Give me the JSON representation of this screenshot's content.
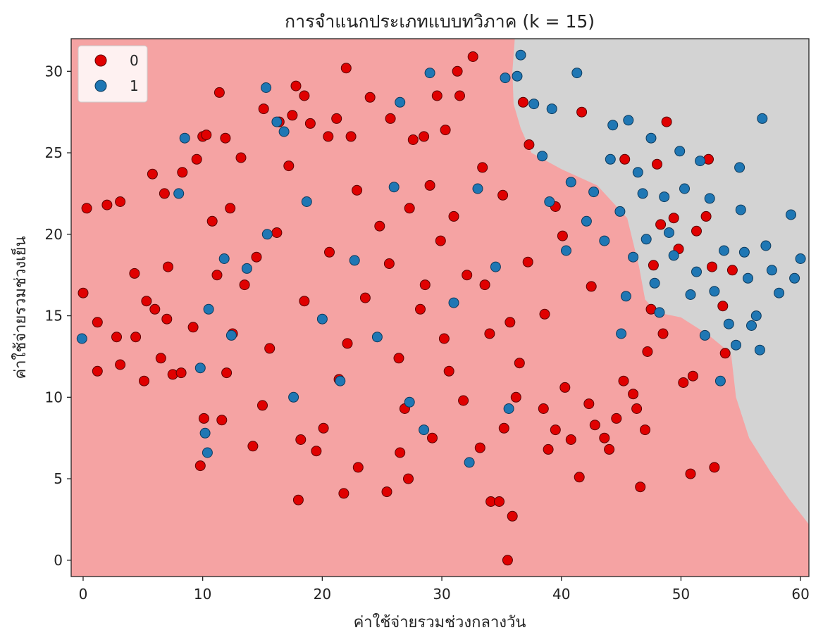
{
  "chart_data": {
    "type": "scatter",
    "title": "การจำแนกประเภทแบบทวิภาค (k = 15)",
    "xlabel": "ค่าใช้จ่ายรวมช่วงกลางวัน",
    "ylabel": "ค่าใช้จ่ายรวมช่วงเย็น",
    "xlim": [
      -1,
      60.7
    ],
    "ylim": [
      -1,
      32
    ],
    "x_ticks": [
      0,
      10,
      20,
      30,
      40,
      50,
      60
    ],
    "y_ticks": [
      0,
      5,
      10,
      15,
      20,
      25,
      30
    ],
    "grid": false,
    "legend": {
      "placement": "top-left",
      "entries": [
        {
          "label": "0",
          "color": "#e00000"
        },
        {
          "label": "1",
          "color": "#1f77b4"
        }
      ]
    },
    "region_colors": {
      "0": "#f5a3a3",
      "1": "#d3d3d3"
    },
    "decision_boundary": [
      [
        36.1,
        32
      ],
      [
        35.9,
        30
      ],
      [
        36.0,
        28
      ],
      [
        36.6,
        26.5
      ],
      [
        37.5,
        25
      ],
      [
        40,
        24
      ],
      [
        43,
        23
      ],
      [
        45.5,
        21
      ],
      [
        46.5,
        18
      ],
      [
        47,
        16
      ],
      [
        48,
        15.2
      ],
      [
        50,
        14.9
      ],
      [
        51.5,
        14.2
      ],
      [
        52.5,
        13.7
      ],
      [
        53.5,
        13.1
      ],
      [
        54.2,
        12.6
      ],
      [
        54.6,
        10
      ],
      [
        55.7,
        7.5
      ],
      [
        57.5,
        5.4
      ],
      [
        59,
        3.8
      ],
      [
        60.7,
        2.2
      ]
    ],
    "series": [
      {
        "name": "0",
        "color": "#e00000",
        "points": [
          [
            0.0,
            16.4
          ],
          [
            0.3,
            21.6
          ],
          [
            1.2,
            14.6
          ],
          [
            1.2,
            11.6
          ],
          [
            2.0,
            21.8
          ],
          [
            2.8,
            13.7
          ],
          [
            3.1,
            12.0
          ],
          [
            3.1,
            22.0
          ],
          [
            4.4,
            13.7
          ],
          [
            4.3,
            17.6
          ],
          [
            5.1,
            11.0
          ],
          [
            5.3,
            15.9
          ],
          [
            5.8,
            23.7
          ],
          [
            6.0,
            15.4
          ],
          [
            6.5,
            12.4
          ],
          [
            6.8,
            22.5
          ],
          [
            7.0,
            14.8
          ],
          [
            7.1,
            18.0
          ],
          [
            7.5,
            11.4
          ],
          [
            8.2,
            11.5
          ],
          [
            8.3,
            23.8
          ],
          [
            9.2,
            14.3
          ],
          [
            9.5,
            24.6
          ],
          [
            9.8,
            5.8
          ],
          [
            10.0,
            26.0
          ],
          [
            10.3,
            26.1
          ],
          [
            10.1,
            8.7
          ],
          [
            10.8,
            20.8
          ],
          [
            11.2,
            17.5
          ],
          [
            11.4,
            28.7
          ],
          [
            11.6,
            8.6
          ],
          [
            11.9,
            25.9
          ],
          [
            12.3,
            21.6
          ],
          [
            12.0,
            11.5
          ],
          [
            12.5,
            13.9
          ],
          [
            13.2,
            24.7
          ],
          [
            13.5,
            16.9
          ],
          [
            14.2,
            7.0
          ],
          [
            14.5,
            18.6
          ],
          [
            15.0,
            9.5
          ],
          [
            15.1,
            27.7
          ],
          [
            15.6,
            13.0
          ],
          [
            16.4,
            26.9
          ],
          [
            17.2,
            24.2
          ],
          [
            17.5,
            27.3
          ],
          [
            17.8,
            29.1
          ],
          [
            18.0,
            3.7
          ],
          [
            18.2,
            7.4
          ],
          [
            18.5,
            28.5
          ],
          [
            19.0,
            26.8
          ],
          [
            19.5,
            6.7
          ],
          [
            20.1,
            8.1
          ],
          [
            20.5,
            26.0
          ],
          [
            21.2,
            27.1
          ],
          [
            21.8,
            4.1
          ],
          [
            22.0,
            30.2
          ],
          [
            22.4,
            26.0
          ],
          [
            23.0,
            5.7
          ],
          [
            24.0,
            28.4
          ],
          [
            25.4,
            4.2
          ],
          [
            25.7,
            27.1
          ],
          [
            26.5,
            6.6
          ],
          [
            27.2,
            5.0
          ],
          [
            27.6,
            25.8
          ],
          [
            28.5,
            26.0
          ],
          [
            29.2,
            7.5
          ],
          [
            29.6,
            28.5
          ],
          [
            30.3,
            26.4
          ],
          [
            31.3,
            30.0
          ],
          [
            31.5,
            28.5
          ],
          [
            32.6,
            30.9
          ],
          [
            33.2,
            6.9
          ],
          [
            34.1,
            3.6
          ],
          [
            34.8,
            3.6
          ],
          [
            35.2,
            8.1
          ],
          [
            35.5,
            0.0
          ],
          [
            35.9,
            2.7
          ],
          [
            36.2,
            10.0
          ],
          [
            36.8,
            28.1
          ],
          [
            37.3,
            25.5
          ],
          [
            38.5,
            9.3
          ],
          [
            38.9,
            6.8
          ],
          [
            39.5,
            8.0
          ],
          [
            40.3,
            10.6
          ],
          [
            40.8,
            7.4
          ],
          [
            41.5,
            5.1
          ],
          [
            41.7,
            27.5
          ],
          [
            42.3,
            9.6
          ],
          [
            42.8,
            8.3
          ],
          [
            43.6,
            7.5
          ],
          [
            44.0,
            6.8
          ],
          [
            44.6,
            8.7
          ],
          [
            45.2,
            11.0
          ],
          [
            45.3,
            24.6
          ],
          [
            46.0,
            10.2
          ],
          [
            46.3,
            9.3
          ],
          [
            46.6,
            4.5
          ],
          [
            47.0,
            8.0
          ],
          [
            47.2,
            12.8
          ],
          [
            47.5,
            15.4
          ],
          [
            47.7,
            18.1
          ],
          [
            48.0,
            24.3
          ],
          [
            48.3,
            20.6
          ],
          [
            48.5,
            13.9
          ],
          [
            48.8,
            26.9
          ],
          [
            49.4,
            21.0
          ],
          [
            49.8,
            19.1
          ],
          [
            50.2,
            10.9
          ],
          [
            50.8,
            5.3
          ],
          [
            51.0,
            11.3
          ],
          [
            51.3,
            20.2
          ],
          [
            52.1,
            21.1
          ],
          [
            52.3,
            24.6
          ],
          [
            52.6,
            18.0
          ],
          [
            52.8,
            5.7
          ],
          [
            53.5,
            15.6
          ],
          [
            53.7,
            12.7
          ],
          [
            54.3,
            17.8
          ],
          [
            22.1,
            13.3
          ],
          [
            25.6,
            18.2
          ],
          [
            28.2,
            15.4
          ],
          [
            31.0,
            21.1
          ],
          [
            33.6,
            16.9
          ],
          [
            26.4,
            12.4
          ],
          [
            29.9,
            19.6
          ],
          [
            35.1,
            22.4
          ],
          [
            23.6,
            16.1
          ],
          [
            37.2,
            18.3
          ],
          [
            30.6,
            11.6
          ],
          [
            27.3,
            21.6
          ],
          [
            34.0,
            13.9
          ],
          [
            32.1,
            17.5
          ],
          [
            24.8,
            20.5
          ],
          [
            38.6,
            15.1
          ],
          [
            20.6,
            18.9
          ],
          [
            36.5,
            12.1
          ],
          [
            29.0,
            23.0
          ],
          [
            22.9,
            22.7
          ],
          [
            31.8,
            9.8
          ],
          [
            40.1,
            19.9
          ],
          [
            18.5,
            15.9
          ],
          [
            33.4,
            24.1
          ],
          [
            26.9,
            9.3
          ],
          [
            42.5,
            16.8
          ],
          [
            16.2,
            20.1
          ],
          [
            35.7,
            14.6
          ],
          [
            28.6,
            16.9
          ],
          [
            21.4,
            11.1
          ],
          [
            39.5,
            21.7
          ],
          [
            30.2,
            13.6
          ]
        ]
      },
      {
        "name": "1",
        "color": "#1f77b4",
        "points": [
          [
            -0.1,
            13.6
          ],
          [
            8.0,
            22.5
          ],
          [
            8.5,
            25.9
          ],
          [
            9.8,
            11.8
          ],
          [
            10.2,
            7.8
          ],
          [
            10.4,
            6.6
          ],
          [
            10.5,
            15.4
          ],
          [
            11.8,
            18.5
          ],
          [
            12.4,
            13.8
          ],
          [
            13.7,
            17.9
          ],
          [
            15.3,
            29.0
          ],
          [
            15.4,
            20.0
          ],
          [
            16.2,
            26.9
          ],
          [
            16.8,
            26.3
          ],
          [
            17.6,
            10.0
          ],
          [
            18.7,
            22.0
          ],
          [
            20.0,
            14.8
          ],
          [
            21.5,
            11.0
          ],
          [
            22.7,
            18.4
          ],
          [
            24.6,
            13.7
          ],
          [
            26.0,
            22.9
          ],
          [
            26.5,
            28.1
          ],
          [
            27.3,
            9.7
          ],
          [
            28.5,
            8.0
          ],
          [
            29.0,
            29.9
          ],
          [
            31.0,
            15.8
          ],
          [
            32.3,
            6.0
          ],
          [
            33.0,
            22.8
          ],
          [
            34.5,
            18.0
          ],
          [
            35.3,
            29.6
          ],
          [
            35.6,
            9.3
          ],
          [
            36.3,
            29.7
          ],
          [
            36.6,
            31.0
          ],
          [
            37.7,
            28.0
          ],
          [
            38.4,
            24.8
          ],
          [
            39.2,
            27.7
          ],
          [
            40.4,
            19.0
          ],
          [
            40.8,
            23.2
          ],
          [
            41.3,
            29.9
          ],
          [
            42.1,
            20.8
          ],
          [
            42.7,
            22.6
          ],
          [
            43.6,
            19.6
          ],
          [
            44.3,
            26.7
          ],
          [
            44.9,
            21.4
          ],
          [
            45.0,
            13.9
          ],
          [
            45.6,
            27.0
          ],
          [
            46.0,
            18.6
          ],
          [
            46.4,
            23.8
          ],
          [
            46.8,
            22.5
          ],
          [
            47.1,
            19.7
          ],
          [
            47.5,
            25.9
          ],
          [
            47.8,
            17.0
          ],
          [
            48.2,
            15.2
          ],
          [
            48.6,
            22.3
          ],
          [
            49.0,
            20.1
          ],
          [
            49.4,
            18.7
          ],
          [
            49.9,
            25.1
          ],
          [
            50.3,
            22.8
          ],
          [
            50.8,
            16.3
          ],
          [
            51.3,
            17.7
          ],
          [
            51.6,
            24.5
          ],
          [
            52.0,
            13.8
          ],
          [
            52.4,
            22.2
          ],
          [
            52.8,
            16.5
          ],
          [
            53.3,
            11.0
          ],
          [
            53.6,
            19.0
          ],
          [
            54.0,
            14.5
          ],
          [
            54.6,
            13.2
          ],
          [
            54.9,
            24.1
          ],
          [
            55.0,
            21.5
          ],
          [
            55.3,
            18.9
          ],
          [
            55.6,
            17.3
          ],
          [
            55.9,
            14.4
          ],
          [
            56.3,
            15.0
          ],
          [
            56.6,
            12.9
          ],
          [
            57.1,
            19.3
          ],
          [
            57.6,
            17.8
          ],
          [
            58.2,
            16.4
          ],
          [
            56.8,
            27.1
          ],
          [
            59.2,
            21.2
          ],
          [
            59.5,
            17.3
          ],
          [
            60.0,
            18.5
          ],
          [
            44.1,
            24.6
          ],
          [
            39.0,
            22.0
          ],
          [
            45.4,
            16.2
          ]
        ]
      }
    ]
  }
}
